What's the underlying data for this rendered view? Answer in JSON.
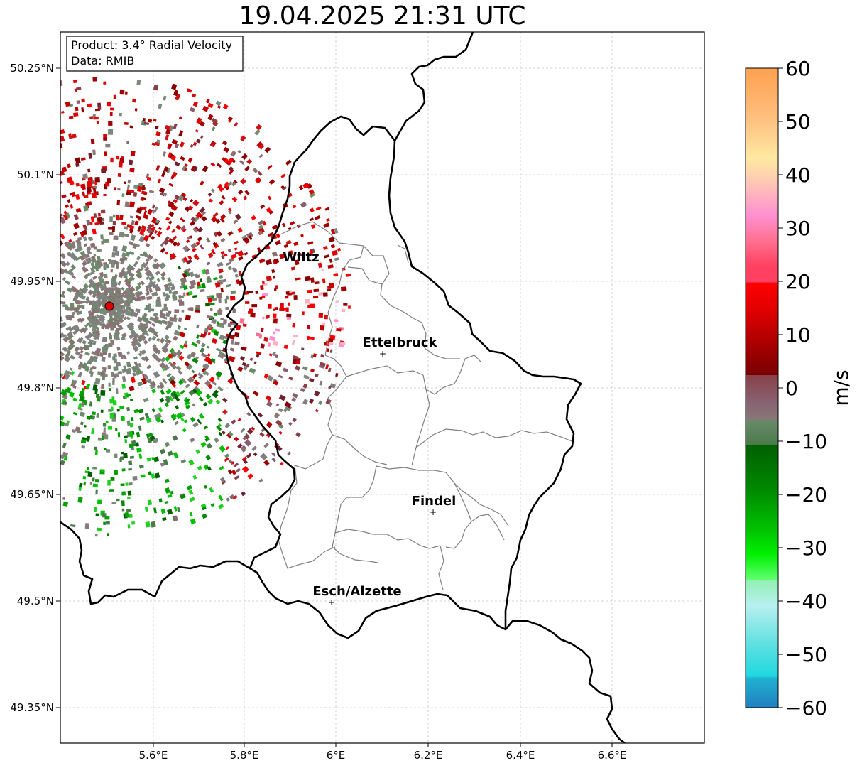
{
  "title": "19.04.2025 21:31 UTC",
  "info_box": {
    "product": "Product: 3.4° Radial Velocity",
    "source": "Data: RMIB"
  },
  "axes": {
    "lon_ticks": [
      "5.6°E",
      "5.8°E",
      "6°E",
      "6.2°E",
      "6.4°E",
      "6.6°E"
    ],
    "lat_ticks": [
      "50.25°N",
      "50.1°N",
      "49.95°N",
      "49.8°N",
      "49.65°N",
      "49.5°N",
      "49.35°N"
    ]
  },
  "cities": [
    {
      "name": "Wiltz"
    },
    {
      "name": "Ettelbruck"
    },
    {
      "name": "Findel"
    },
    {
      "name": "Esch/Alzette"
    }
  ],
  "colorbar": {
    "label": "m/s",
    "min": -60,
    "max": 60,
    "ticks": [
      "60",
      "50",
      "40",
      "30",
      "20",
      "10",
      "0",
      "−10",
      "−20",
      "−30",
      "−40",
      "−50",
      "−60"
    ]
  },
  "colors": {
    "radar_site": "#dd0000",
    "border": "#000000",
    "cantons": "#808080",
    "grid": "#c8c8c8"
  }
}
